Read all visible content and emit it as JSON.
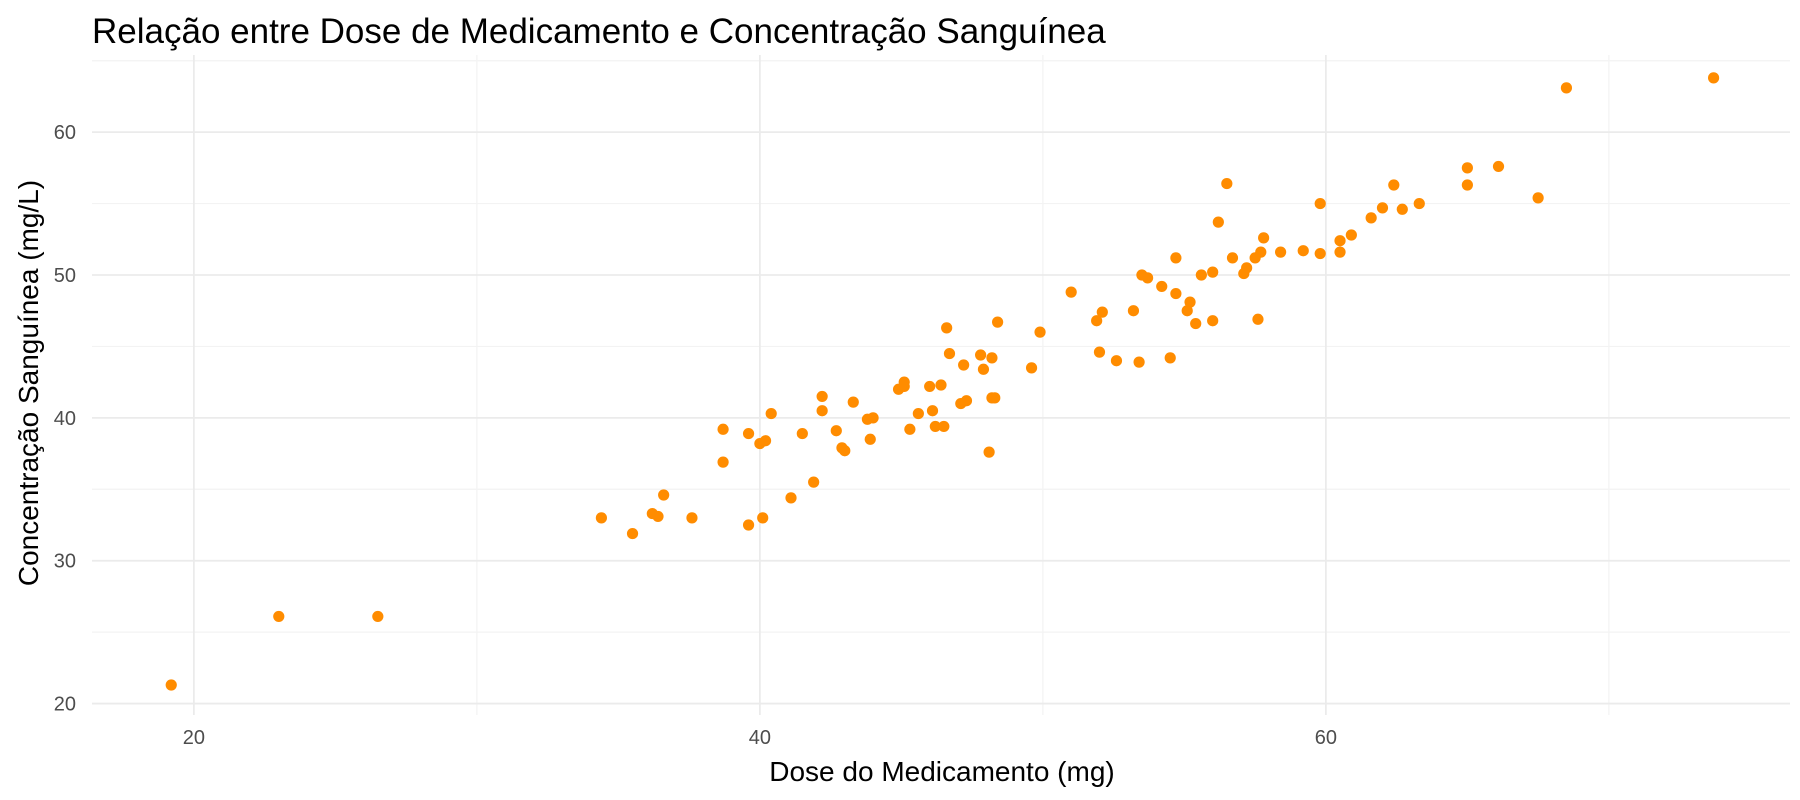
{
  "chart_data": {
    "type": "scatter",
    "title": "Relação entre Dose de Medicamento e Concentração Sanguínea",
    "xlabel": "Dose do Medicamento (mg)",
    "ylabel": "Concentração Sanguínea (mg/L)",
    "xlim": [
      16.4,
      76.4
    ],
    "ylim": [
      19.2,
      65.4
    ],
    "xticks": [
      20,
      40,
      60
    ],
    "yticks": [
      20,
      30,
      40,
      50,
      60
    ],
    "xminor": [
      30,
      50,
      70
    ],
    "yminor": [
      25,
      35,
      45,
      55,
      65
    ],
    "grid": true,
    "point_color": "#ff8c00",
    "series": [
      {
        "points": [
          [
            19.2,
            21.3
          ],
          [
            23.0,
            26.1
          ],
          [
            26.5,
            26.1
          ],
          [
            34.4,
            33.0
          ],
          [
            35.5,
            31.9
          ],
          [
            36.2,
            33.3
          ],
          [
            36.4,
            33.1
          ],
          [
            36.6,
            34.6
          ],
          [
            37.6,
            33.0
          ],
          [
            38.7,
            39.2
          ],
          [
            38.7,
            36.9
          ],
          [
            39.6,
            38.9
          ],
          [
            39.6,
            32.5
          ],
          [
            40.0,
            38.2
          ],
          [
            40.1,
            33.0
          ],
          [
            40.2,
            38.4
          ],
          [
            40.4,
            40.3
          ],
          [
            41.1,
            34.4
          ],
          [
            41.5,
            38.9
          ],
          [
            41.9,
            35.5
          ],
          [
            42.2,
            41.5
          ],
          [
            42.2,
            40.5
          ],
          [
            42.7,
            39.1
          ],
          [
            42.9,
            37.9
          ],
          [
            43.0,
            37.7
          ],
          [
            43.3,
            41.1
          ],
          [
            43.8,
            39.9
          ],
          [
            43.9,
            38.5
          ],
          [
            44.0,
            40.0
          ],
          [
            44.9,
            42.0
          ],
          [
            45.1,
            42.2
          ],
          [
            45.1,
            42.5
          ],
          [
            45.3,
            39.2
          ],
          [
            45.6,
            40.3
          ],
          [
            46.0,
            42.2
          ],
          [
            46.1,
            40.5
          ],
          [
            46.2,
            39.4
          ],
          [
            46.4,
            42.3
          ],
          [
            46.5,
            39.4
          ],
          [
            46.6,
            46.3
          ],
          [
            46.7,
            44.5
          ],
          [
            47.1,
            41.0
          ],
          [
            47.2,
            43.7
          ],
          [
            47.3,
            41.2
          ],
          [
            47.8,
            44.4
          ],
          [
            47.9,
            43.4
          ],
          [
            48.1,
            37.6
          ],
          [
            48.2,
            44.2
          ],
          [
            48.2,
            41.4
          ],
          [
            48.3,
            41.4
          ],
          [
            48.4,
            46.7
          ],
          [
            49.6,
            43.5
          ],
          [
            49.9,
            46.0
          ],
          [
            51.0,
            48.8
          ],
          [
            51.9,
            46.8
          ],
          [
            52.0,
            44.6
          ],
          [
            52.1,
            47.4
          ],
          [
            52.6,
            44.0
          ],
          [
            53.2,
            47.5
          ],
          [
            53.4,
            43.9
          ],
          [
            53.5,
            50.0
          ],
          [
            53.7,
            49.8
          ],
          [
            54.2,
            49.2
          ],
          [
            54.5,
            44.2
          ],
          [
            54.7,
            51.2
          ],
          [
            54.7,
            48.7
          ],
          [
            55.1,
            47.5
          ],
          [
            55.2,
            48.1
          ],
          [
            55.4,
            46.6
          ],
          [
            55.6,
            50.0
          ],
          [
            56.0,
            46.8
          ],
          [
            56.0,
            50.2
          ],
          [
            56.2,
            53.7
          ],
          [
            56.5,
            56.4
          ],
          [
            56.7,
            51.2
          ],
          [
            57.1,
            50.1
          ],
          [
            57.2,
            50.5
          ],
          [
            57.5,
            51.2
          ],
          [
            57.6,
            46.9
          ],
          [
            57.7,
            51.6
          ],
          [
            57.8,
            52.6
          ],
          [
            58.4,
            51.6
          ],
          [
            59.2,
            51.7
          ],
          [
            59.8,
            51.5
          ],
          [
            59.8,
            55.0
          ],
          [
            60.5,
            52.4
          ],
          [
            60.5,
            51.6
          ],
          [
            60.9,
            52.8
          ],
          [
            61.6,
            54.0
          ],
          [
            62.0,
            54.7
          ],
          [
            62.4,
            56.3
          ],
          [
            62.7,
            54.6
          ],
          [
            63.3,
            55.0
          ],
          [
            65.0,
            57.5
          ],
          [
            65.0,
            56.3
          ],
          [
            66.1,
            57.6
          ],
          [
            67.5,
            55.4
          ],
          [
            68.5,
            63.1
          ],
          [
            73.7,
            63.8
          ]
        ]
      }
    ]
  }
}
